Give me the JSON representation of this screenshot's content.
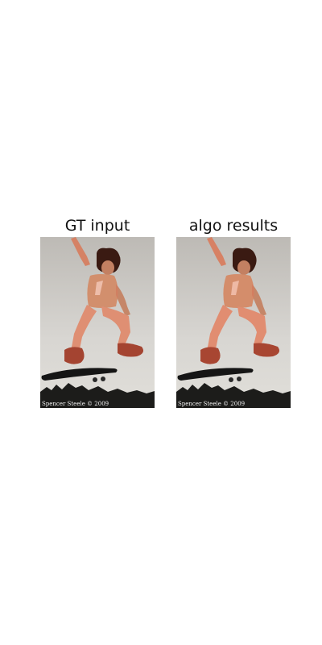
{
  "panels": [
    {
      "title": "GT input",
      "photo_credit": "Spencer Steele © 2009",
      "overlay_color": "#ff6a4a",
      "overlay_regions": [
        "arm",
        "torso",
        "legs",
        "shoes",
        "hair"
      ]
    },
    {
      "title": "algo results",
      "photo_credit": "Spencer Steele © 2009",
      "overlay_color": "#ff6a4a",
      "overlay_regions": [
        "arm",
        "torso",
        "legs",
        "shoes",
        "hair"
      ]
    }
  ],
  "colors": {
    "sky": "#d2d0cc",
    "ground": "#1a1a1a",
    "skin_tint": "#c78466",
    "pants": "#d89a80"
  }
}
